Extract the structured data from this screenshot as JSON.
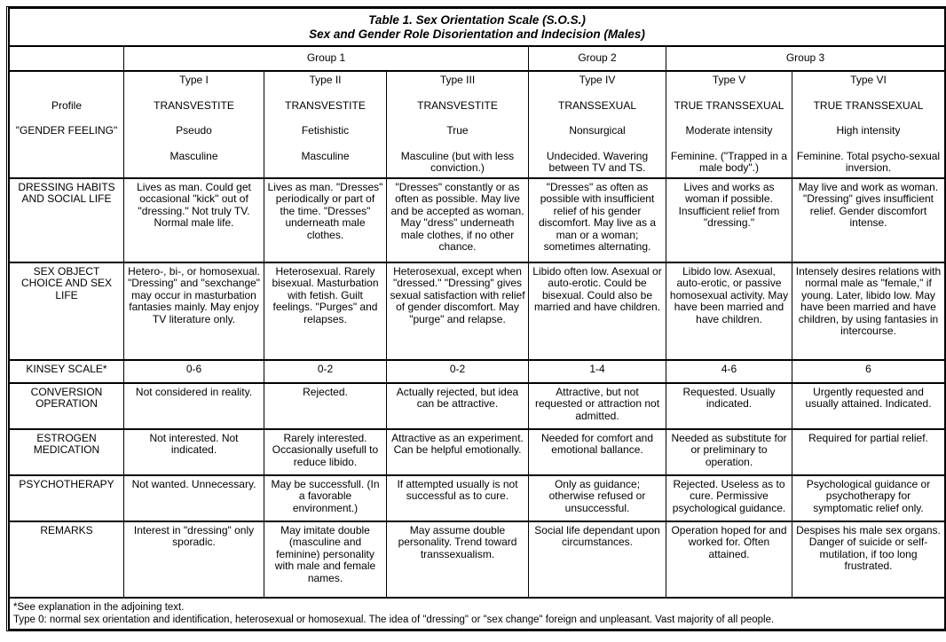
{
  "title": "Table 1. Sex Orientation Scale (S.O.S.)",
  "subtitle": "Sex and Gender Role Disorientation and Indecision (Males)",
  "groups": [
    "Group 1",
    "Group 2",
    "Group 3"
  ],
  "profile_labels": [
    "Profile",
    "\"GENDER FEELING\""
  ],
  "types": [
    {
      "type": "Type I",
      "name": "TRANSVESTITE",
      "kind": "Pseudo",
      "feeling": "Masculine"
    },
    {
      "type": "Type II",
      "name": "TRANSVESTITE",
      "kind": "Fetishistic",
      "feeling": "Masculine"
    },
    {
      "type": "Type III",
      "name": "TRANSVESTITE",
      "kind": "True",
      "feeling": "Masculine (but with less conviction.)"
    },
    {
      "type": "Type IV",
      "name": "TRANSSEXUAL",
      "kind": "Nonsurgical",
      "feeling": "Undecided. Wavering between TV and TS."
    },
    {
      "type": "Type V",
      "name": "TRUE TRANSSEXUAL",
      "kind": "Moderate intensity",
      "feeling": "Feminine. (\"Trapped in a male body\".)"
    },
    {
      "type": "Type VI",
      "name": "TRUE TRANSSEXUAL",
      "kind": "High intensity",
      "feeling": "Feminine. Total psycho-sexual inversion."
    }
  ],
  "rows": [
    {
      "label": "DRESSING HABITS AND SOCIAL LIFE",
      "cells": [
        "Lives as man. Could get occasional \"kick\" out of \"dressing.\" Not truly TV. Normal male life.",
        "Lives as man. \"Dresses\" periodically or part of the time. \"Dresses\" underneath male clothes.",
        "\"Dresses\" constantly or as often as possible. May live and be accepted as woman. May \"dress\" underneath male clothes, if no other chance.",
        "\"Dresses\" as often as possible with insufficient relief of his gender discomfort. May live as a man or a woman; sometimes alternating.",
        "Lives and works as woman if possible. Insufficient relief from \"dressing.\"",
        "May live and work as woman. \"Dressing\" gives insufficient relief. Gender discomfort intense."
      ]
    },
    {
      "label": "SEX OBJECT CHOICE AND SEX LIFE",
      "cells": [
        "Hetero-, bi-, or homosexual. \"Dressing\" and \"sexchange\" may occur in masturbation fantasies mainly. May enjoy TV literature only.",
        "Heterosexual. Rarely bisexual. Masturbation with fetish. Guilt feelings. \"Purges\" and relapses.",
        "Heterosexual, except when \"dressed.\" \"Dressing\" gives sexual satisfaction with relief of gender discomfort. May \"purge\" and relapse.",
        "Libido often low. Asexual or auto-erotic. Could be bisexual. Could also be married and have children.",
        "Libido low. Asexual, auto-erotic, or passive homosexual activity. May have been married and have children.",
        "Intensely desires relations with normal male as \"female,\" if young. Later, libido low. May have been married and have children, by using fantasies in intercourse."
      ]
    },
    {
      "label": "KINSEY SCALE*",
      "cells": [
        "0-6",
        "0-2",
        "0-2",
        "1-4",
        "4-6",
        "6"
      ]
    },
    {
      "label": "CONVERSION OPERATION",
      "cells": [
        "Not considered in reality.",
        "Rejected.",
        "Actually rejected, but idea can be attractive.",
        "Attractive, but not requested or attraction not admitted.",
        "Requested. Usually indicated.",
        "Urgently requested and usually attained. Indicated."
      ]
    },
    {
      "label": "ESTROGEN MEDICATION",
      "cells": [
        "Not interested. Not indicated.",
        "Rarely interested. Occasionally usefull to reduce libido.",
        "Attractive as an experiment. Can be helpful emotionally.",
        "Needed for comfort and emotional ballance.",
        "Needed as substitute for or preliminary to operation.",
        "Required for partial relief."
      ]
    },
    {
      "label": "PSYCHOTHERAPY",
      "cells": [
        "Not wanted. Unnecessary.",
        "May be successfull. (In a favorable environment.)",
        "If attempted usually is not successful as to cure.",
        "Only as guidance; otherwise refused or unsuccessful.",
        "Rejected. Useless as to cure. Permissive psychological guidance.",
        "Psychological guidance or psychotherapy for symptomatic relief only."
      ]
    },
    {
      "label": "REMARKS",
      "cells": [
        "Interest in \"dressing\" only sporadic.",
        "May imitate double (masculine and feminine) personality with male and female names.",
        "May assume double personality. Trend toward transsexualism.",
        "Social life dependant upon circumstances.",
        "Operation hoped for and worked for. Often attained.",
        "Despises his male sex organs. Danger of suicide or self-mutilation, if too long frustrated."
      ]
    }
  ],
  "footnotes": [
    "*See explanation in the adjoining text.",
    "Type 0: normal sex orientation and identification, heterosexual or homosexual. The idea of \"dressing\" or \"sex change\" foreign and unpleasant. Vast majority of all people."
  ]
}
